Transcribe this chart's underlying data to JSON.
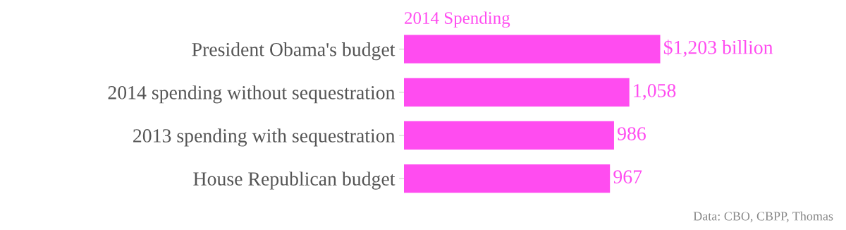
{
  "chart_data": {
    "type": "bar",
    "orientation": "horizontal",
    "title": "2014 Spending",
    "categories": [
      "President Obama's budget",
      "2014 spending without sequestration",
      "2013 spending with sequestration",
      "House Republican budget"
    ],
    "values": [
      1203,
      1058,
      986,
      967
    ],
    "value_labels": [
      "$1,203 billion",
      "1,058",
      "986",
      "967"
    ],
    "color": "#ff4cf0",
    "annotations": [
      "Data: CBO, CBPP, Thomas"
    ]
  }
}
